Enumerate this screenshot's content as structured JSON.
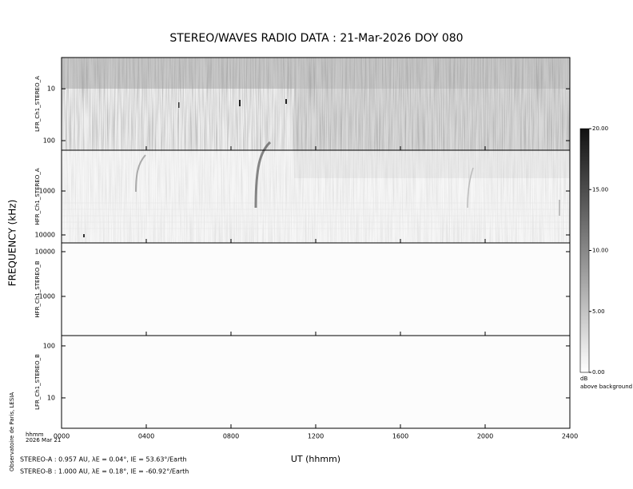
{
  "chart_data": {
    "type": "spectrogram",
    "title": "STEREO/WAVES  RADIO  DATA : 21-Mar-2026  DOY 080",
    "ylabel": "FREQUENCY (kHz)",
    "xlabel": "UT (hhmm)",
    "x_sublabels": [
      "hhmm",
      "2026 Mar 21"
    ],
    "xlim": [
      0,
      24
    ],
    "xticks": [
      {
        "value": 0,
        "label": "0000"
      },
      {
        "value": 4,
        "label": "0400"
      },
      {
        "value": 8,
        "label": "0800"
      },
      {
        "value": 12,
        "label": "1200"
      },
      {
        "value": 16,
        "label": "1600"
      },
      {
        "value": 20,
        "label": "2000"
      },
      {
        "value": 24,
        "label": "2400"
      }
    ],
    "log_y": true,
    "panels": [
      {
        "name": "LFR_Ch1_STEREO_A",
        "ylim": [
          153,
          2.5
        ],
        "yticks": [
          10,
          100
        ]
      },
      {
        "name": "HFR_Ch1_STEREO_A",
        "ylim": [
          15200,
          118
        ],
        "yticks": [
          1000,
          10000
        ]
      },
      {
        "name": "HFR_Ch1_STEREO_B",
        "ylim": [
          133,
          15700
        ],
        "yticks": [
          10000,
          1000
        ]
      },
      {
        "name": "LFR_Ch1_STEREO_B",
        "ylim": [
          2.6,
          158
        ],
        "yticks": [
          100,
          10
        ]
      }
    ],
    "colorbar": {
      "zlim": [
        0,
        20
      ],
      "zticks": [
        {
          "value": 0,
          "label": "0.00"
        },
        {
          "value": 5,
          "label": "5.00"
        },
        {
          "value": 10,
          "label": "10.00"
        },
        {
          "value": 15,
          "label": "15.00"
        },
        {
          "value": 20,
          "label": "20.00"
        }
      ],
      "label": "dB",
      "sublabel": "above background"
    },
    "credit": "Observatoire de Paris, LESIA",
    "footer": [
      "STEREO-A : 0.957 AU, λE = 0.04°, lE = 53.63°/Earth",
      "STEREO-B : 1.000 AU, λE = 0.18°, lE = -60.92°/Earth"
    ]
  }
}
